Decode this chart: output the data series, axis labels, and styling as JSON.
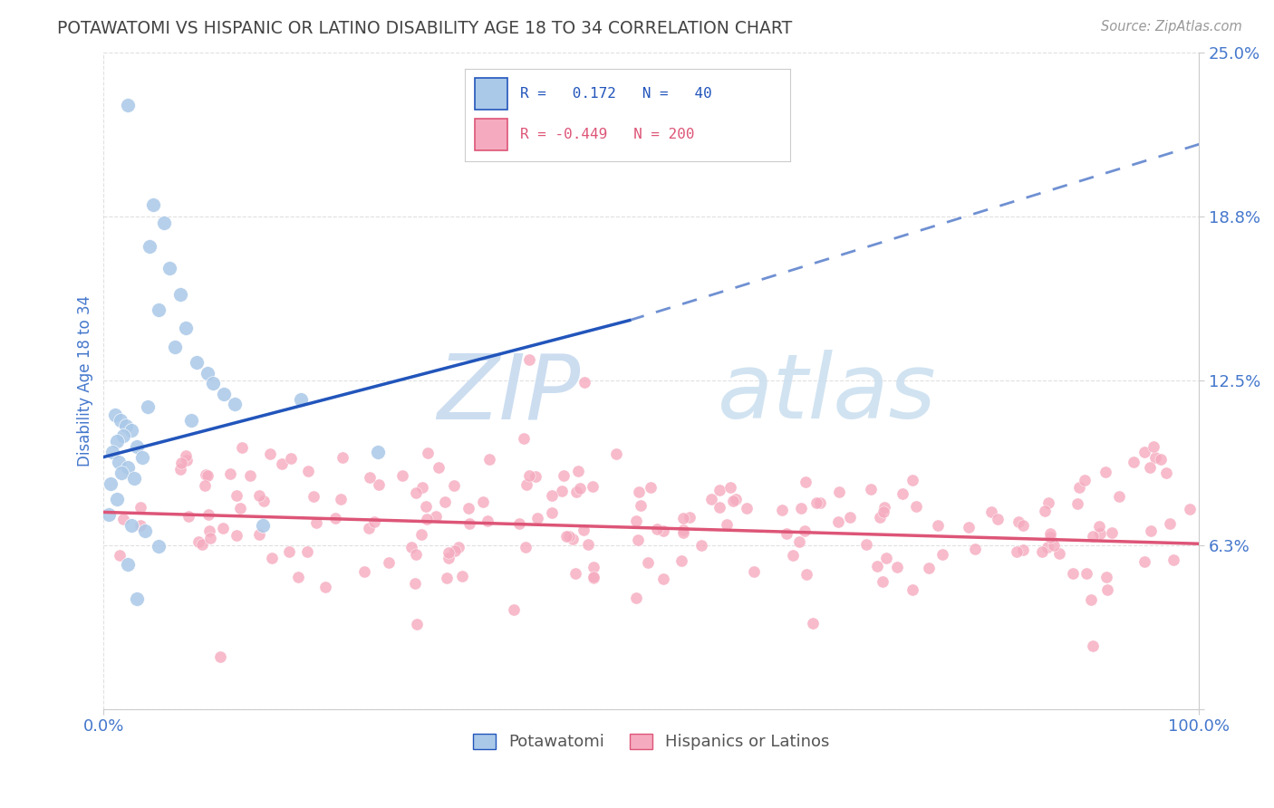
{
  "title": "POTAWATOMI VS HISPANIC OR LATINO DISABILITY AGE 18 TO 34 CORRELATION CHART",
  "source": "Source: ZipAtlas.com",
  "ylabel": "Disability Age 18 to 34",
  "xmin": 0.0,
  "xmax": 1.0,
  "ymin": 0.0,
  "ymax": 0.25,
  "ytick_vals": [
    0.0,
    0.0625,
    0.125,
    0.1875,
    0.25
  ],
  "ytick_labels": [
    "",
    "6.3%",
    "12.5%",
    "18.8%",
    "25.0%"
  ],
  "xtick_vals": [
    0.0,
    1.0
  ],
  "xtick_labels": [
    "0.0%",
    "100.0%"
  ],
  "legend_labels": [
    "Potawatomi",
    "Hispanics or Latinos"
  ],
  "blue_scatter_color": "#aac8e8",
  "pink_scatter_color": "#f5aabf",
  "blue_line_color": "#2255bb",
  "pink_line_color": "#dd5577",
  "blue_line_solid": [
    [
      0.0,
      0.096
    ],
    [
      0.48,
      0.148
    ]
  ],
  "blue_line_dashed": [
    [
      0.48,
      0.148
    ],
    [
      1.0,
      0.215
    ]
  ],
  "pink_line": [
    [
      0.0,
      0.075
    ],
    [
      1.0,
      0.063
    ]
  ],
  "background_color": "#ffffff",
  "grid_color": "#cccccc",
  "title_color": "#444444",
  "axis_label_color": "#4477cc",
  "right_tick_color": "#4477cc",
  "watermark_zip_color": "#ccddf0",
  "watermark_atlas_color": "#cce0f0",
  "legend_R1": "R =   0.172   N =   40",
  "legend_R2": "R = -0.449   N = 200",
  "seed_blue": 42,
  "seed_pink": 99
}
